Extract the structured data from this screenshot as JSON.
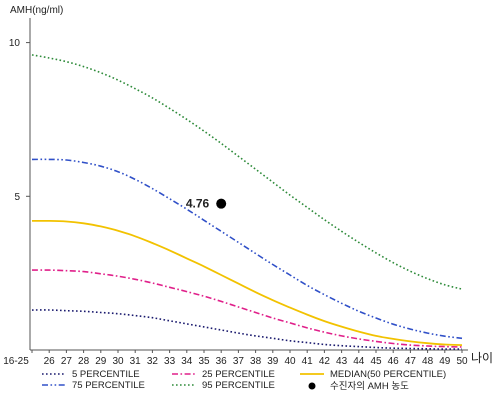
{
  "chart_data": {
    "type": "line",
    "ylabel": "AMH(ng/ml)",
    "xlabel": "나이",
    "y_ticks": [
      "10",
      "5"
    ],
    "y_tick_values": [
      10,
      5
    ],
    "ylim": [
      0,
      10.8
    ],
    "categories": [
      "16-25",
      "26",
      "27",
      "28",
      "29",
      "30",
      "31",
      "32",
      "33",
      "34",
      "35",
      "36",
      "37",
      "38",
      "39",
      "40",
      "41",
      "42",
      "43",
      "44",
      "45",
      "46",
      "47",
      "48",
      "49",
      "50"
    ],
    "grid": false,
    "legend_position": "bottom",
    "series": [
      {
        "name": "5 PERCENTILE",
        "color": "#1a1a6e",
        "dash": "dotted",
        "values": [
          1.3,
          1.3,
          1.28,
          1.26,
          1.22,
          1.18,
          1.12,
          1.05,
          0.95,
          0.85,
          0.75,
          0.65,
          0.55,
          0.46,
          0.38,
          0.3,
          0.24,
          0.18,
          0.14,
          0.11,
          0.08,
          0.06,
          0.05,
          0.04,
          0.03,
          0.03
        ]
      },
      {
        "name": "25 PERCENTILE",
        "color": "#e0208a",
        "dash": "dashdot",
        "values": [
          2.6,
          2.6,
          2.58,
          2.55,
          2.48,
          2.4,
          2.3,
          2.18,
          2.04,
          1.9,
          1.75,
          1.58,
          1.4,
          1.22,
          1.04,
          0.88,
          0.72,
          0.58,
          0.46,
          0.36,
          0.28,
          0.21,
          0.16,
          0.13,
          0.11,
          0.1
        ]
      },
      {
        "name": "MEDIAN(50 PERCENTILE)",
        "color": "#f2c200",
        "dash": "solid",
        "values": [
          4.2,
          4.2,
          4.18,
          4.12,
          4.02,
          3.88,
          3.7,
          3.48,
          3.24,
          2.98,
          2.72,
          2.44,
          2.16,
          1.88,
          1.62,
          1.38,
          1.15,
          0.94,
          0.76,
          0.6,
          0.46,
          0.36,
          0.28,
          0.22,
          0.18,
          0.16
        ]
      },
      {
        "name": "75 PERCENTILE",
        "color": "#3050c8",
        "dash": "dashdotdot",
        "values": [
          6.2,
          6.2,
          6.18,
          6.1,
          5.98,
          5.8,
          5.55,
          5.25,
          4.92,
          4.58,
          4.22,
          3.86,
          3.5,
          3.14,
          2.78,
          2.44,
          2.1,
          1.8,
          1.52,
          1.26,
          1.04,
          0.84,
          0.68,
          0.55,
          0.45,
          0.38
        ]
      },
      {
        "name": "95 PERCENTILE",
        "color": "#2e8b3a",
        "dash": "dotted",
        "values": [
          9.6,
          9.5,
          9.38,
          9.22,
          9.02,
          8.78,
          8.5,
          8.2,
          7.86,
          7.5,
          7.12,
          6.72,
          6.3,
          5.88,
          5.46,
          5.04,
          4.64,
          4.24,
          3.86,
          3.5,
          3.16,
          2.84,
          2.56,
          2.32,
          2.12,
          1.98
        ]
      }
    ],
    "marker": {
      "label": "수진자의 AMH 농도",
      "x": "36",
      "y": 4.76,
      "text": "4.76",
      "color": "#000000"
    }
  }
}
